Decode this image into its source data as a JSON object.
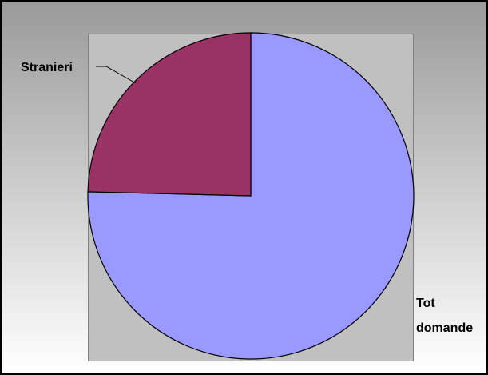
{
  "chart_data": {
    "type": "pie",
    "title": "",
    "slices": [
      {
        "label": "Tot domande",
        "value": 75.4,
        "color": "#9999ff"
      },
      {
        "label": "Stranieri",
        "value": 24.6,
        "color": "#993366"
      }
    ],
    "legend": "none",
    "background": "gradient gray to white"
  }
}
